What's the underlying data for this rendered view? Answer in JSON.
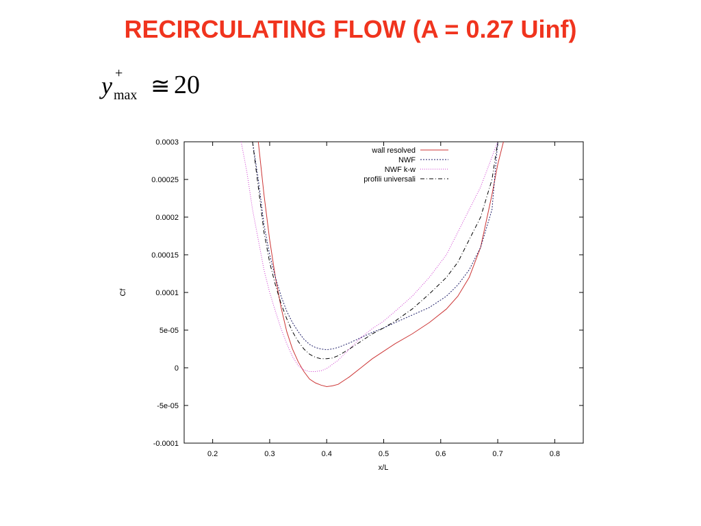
{
  "slide": {
    "title": "RECIRCULATING FLOW (A = 0.27 Uinf)"
  },
  "formula": {
    "variable": "y",
    "superscript": "+",
    "subscript": "max",
    "relation": "≅",
    "value": "20"
  },
  "chart_data": {
    "type": "line",
    "title": "",
    "xlabel": "x/L",
    "ylabel": "Cf",
    "xlim": [
      0.15,
      0.85
    ],
    "ylim": [
      -0.0001,
      0.0003
    ],
    "xticks": [
      0.2,
      0.3,
      0.4,
      0.5,
      0.6,
      0.7,
      0.8
    ],
    "xtick_labels": [
      "0.2",
      "0.3",
      "0.4",
      "0.5",
      "0.6",
      "0.7",
      "0.8"
    ],
    "yticks": [
      -0.0001,
      -5e-05,
      0,
      5e-05,
      0.0001,
      0.00015,
      0.0002,
      0.00025,
      0.0003
    ],
    "ytick_labels": [
      "-0.0001",
      "-5e-05",
      "0",
      "5e-05",
      "0.0001",
      "0.00015",
      "0.0002",
      "0.00025",
      "0.0003"
    ],
    "grid": false,
    "legend_position": "top-right",
    "series": [
      {
        "name": "wall resolved",
        "color": "#cc3333",
        "dash": "solid",
        "x": [
          0.28,
          0.29,
          0.3,
          0.31,
          0.32,
          0.33,
          0.34,
          0.35,
          0.36,
          0.37,
          0.38,
          0.39,
          0.4,
          0.41,
          0.42,
          0.44,
          0.46,
          0.48,
          0.5,
          0.52,
          0.55,
          0.58,
          0.61,
          0.63,
          0.65,
          0.67,
          0.69,
          0.7,
          0.71
        ],
        "y": [
          0.0003,
          0.00023,
          0.00017,
          0.00012,
          8e-05,
          4.8e-05,
          2.5e-05,
          8e-06,
          -5e-06,
          -1.5e-05,
          -2e-05,
          -2.3e-05,
          -2.5e-05,
          -2.4e-05,
          -2.2e-05,
          -1.2e-05,
          0.0,
          1.2e-05,
          2.2e-05,
          3.2e-05,
          4.5e-05,
          6e-05,
          7.8e-05,
          9.5e-05,
          0.00012,
          0.00016,
          0.00023,
          0.00027,
          0.0003
        ]
      },
      {
        "name": "NWF",
        "color": "#1a1a66",
        "dash": "2,2",
        "x": [
          0.27,
          0.28,
          0.29,
          0.3,
          0.31,
          0.32,
          0.33,
          0.34,
          0.35,
          0.36,
          0.37,
          0.38,
          0.39,
          0.4,
          0.41,
          0.42,
          0.44,
          0.46,
          0.48,
          0.5,
          0.52,
          0.55,
          0.58,
          0.61,
          0.63,
          0.65,
          0.67,
          0.69,
          0.7
        ],
        "y": [
          0.0003,
          0.00025,
          0.00019,
          0.00015,
          0.00012,
          9.5e-05,
          7.5e-05,
          6e-05,
          4.8e-05,
          3.8e-05,
          3.1e-05,
          2.7e-05,
          2.5e-05,
          2.4e-05,
          2.5e-05,
          2.7e-05,
          3.3e-05,
          4e-05,
          4.7e-05,
          5.3e-05,
          6e-05,
          7e-05,
          8e-05,
          9.5e-05,
          0.00011,
          0.00013,
          0.00016,
          0.00021,
          0.0003
        ]
      },
      {
        "name": "NWF k-w",
        "color": "#cc33cc",
        "dash": "1,2",
        "x": [
          0.25,
          0.26,
          0.27,
          0.28,
          0.29,
          0.3,
          0.31,
          0.32,
          0.33,
          0.34,
          0.35,
          0.36,
          0.37,
          0.38,
          0.39,
          0.4,
          0.42,
          0.44,
          0.46,
          0.48,
          0.5,
          0.52,
          0.55,
          0.58,
          0.61,
          0.63,
          0.65,
          0.67,
          0.69,
          0.7
        ],
        "y": [
          0.0003,
          0.00026,
          0.00021,
          0.00017,
          0.00013,
          0.0001,
          7.5e-05,
          5.2e-05,
          3.2e-05,
          1.5e-05,
          3e-06,
          -3e-06,
          -5e-06,
          -5e-06,
          -4e-06,
          -1e-06,
          1e-05,
          2.5e-05,
          4e-05,
          5.2e-05,
          6.2e-05,
          7.5e-05,
          9.5e-05,
          0.00012,
          0.00015,
          0.00018,
          0.00021,
          0.00024,
          0.00028,
          0.0003
        ]
      },
      {
        "name": "profili universali",
        "color": "#000000",
        "dash": "6,3,1,3",
        "x": [
          0.27,
          0.28,
          0.29,
          0.3,
          0.31,
          0.32,
          0.33,
          0.34,
          0.35,
          0.36,
          0.37,
          0.38,
          0.39,
          0.4,
          0.41,
          0.42,
          0.44,
          0.46,
          0.48,
          0.5,
          0.52,
          0.55,
          0.58,
          0.61,
          0.63,
          0.65,
          0.67,
          0.69,
          0.7
        ],
        "y": [
          0.0003,
          0.00024,
          0.00018,
          0.00014,
          0.00011,
          8.5e-05,
          6.5e-05,
          4.8e-05,
          3.5e-05,
          2.5e-05,
          1.8e-05,
          1.4e-05,
          1.2e-05,
          1.2e-05,
          1.3e-05,
          1.6e-05,
          2.5e-05,
          3.5e-05,
          4.5e-05,
          5.3e-05,
          6.2e-05,
          7.8e-05,
          9.8e-05,
          0.00012,
          0.00014,
          0.00017,
          0.0002,
          0.00025,
          0.0003
        ]
      }
    ]
  }
}
